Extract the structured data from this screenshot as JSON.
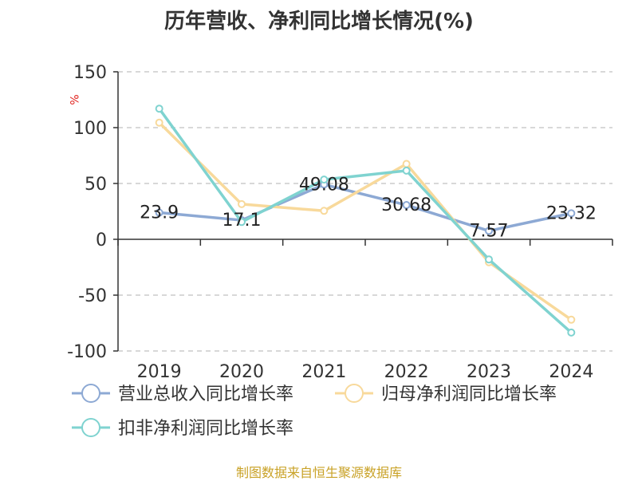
{
  "chart_data": {
    "type": "line",
    "title": "历年营收、净利同比增长情况(%)",
    "ylabel": "%",
    "categories": [
      "2019",
      "2020",
      "2021",
      "2022",
      "2023",
      "2024"
    ],
    "yticks": [
      "150",
      "100",
      "50",
      "0",
      "-50",
      "-100"
    ],
    "ylim": [
      -100,
      150
    ],
    "grid": true,
    "legend_position": "bottom",
    "series": [
      {
        "name": "营业总收入同比增长率",
        "color": "#8da9d4",
        "values": [
          23.9,
          17.1,
          49.08,
          30.68,
          7.57,
          23.32
        ],
        "labels": [
          "23.9",
          "17.1",
          "49.08",
          "30.68",
          "7.57",
          "23.32"
        ]
      },
      {
        "name": "归母净利润同比增长率",
        "color": "#f8d99b",
        "values": [
          104.5,
          31.5,
          25.5,
          67.5,
          -20.5,
          -72.0
        ]
      },
      {
        "name": "扣非净利润同比增长率",
        "color": "#7fd3d0",
        "values": [
          117.0,
          15.5,
          53.5,
          61.5,
          -18.0,
          -83.5
        ]
      }
    ]
  },
  "source": "制图数据来自恒生聚源数据库"
}
